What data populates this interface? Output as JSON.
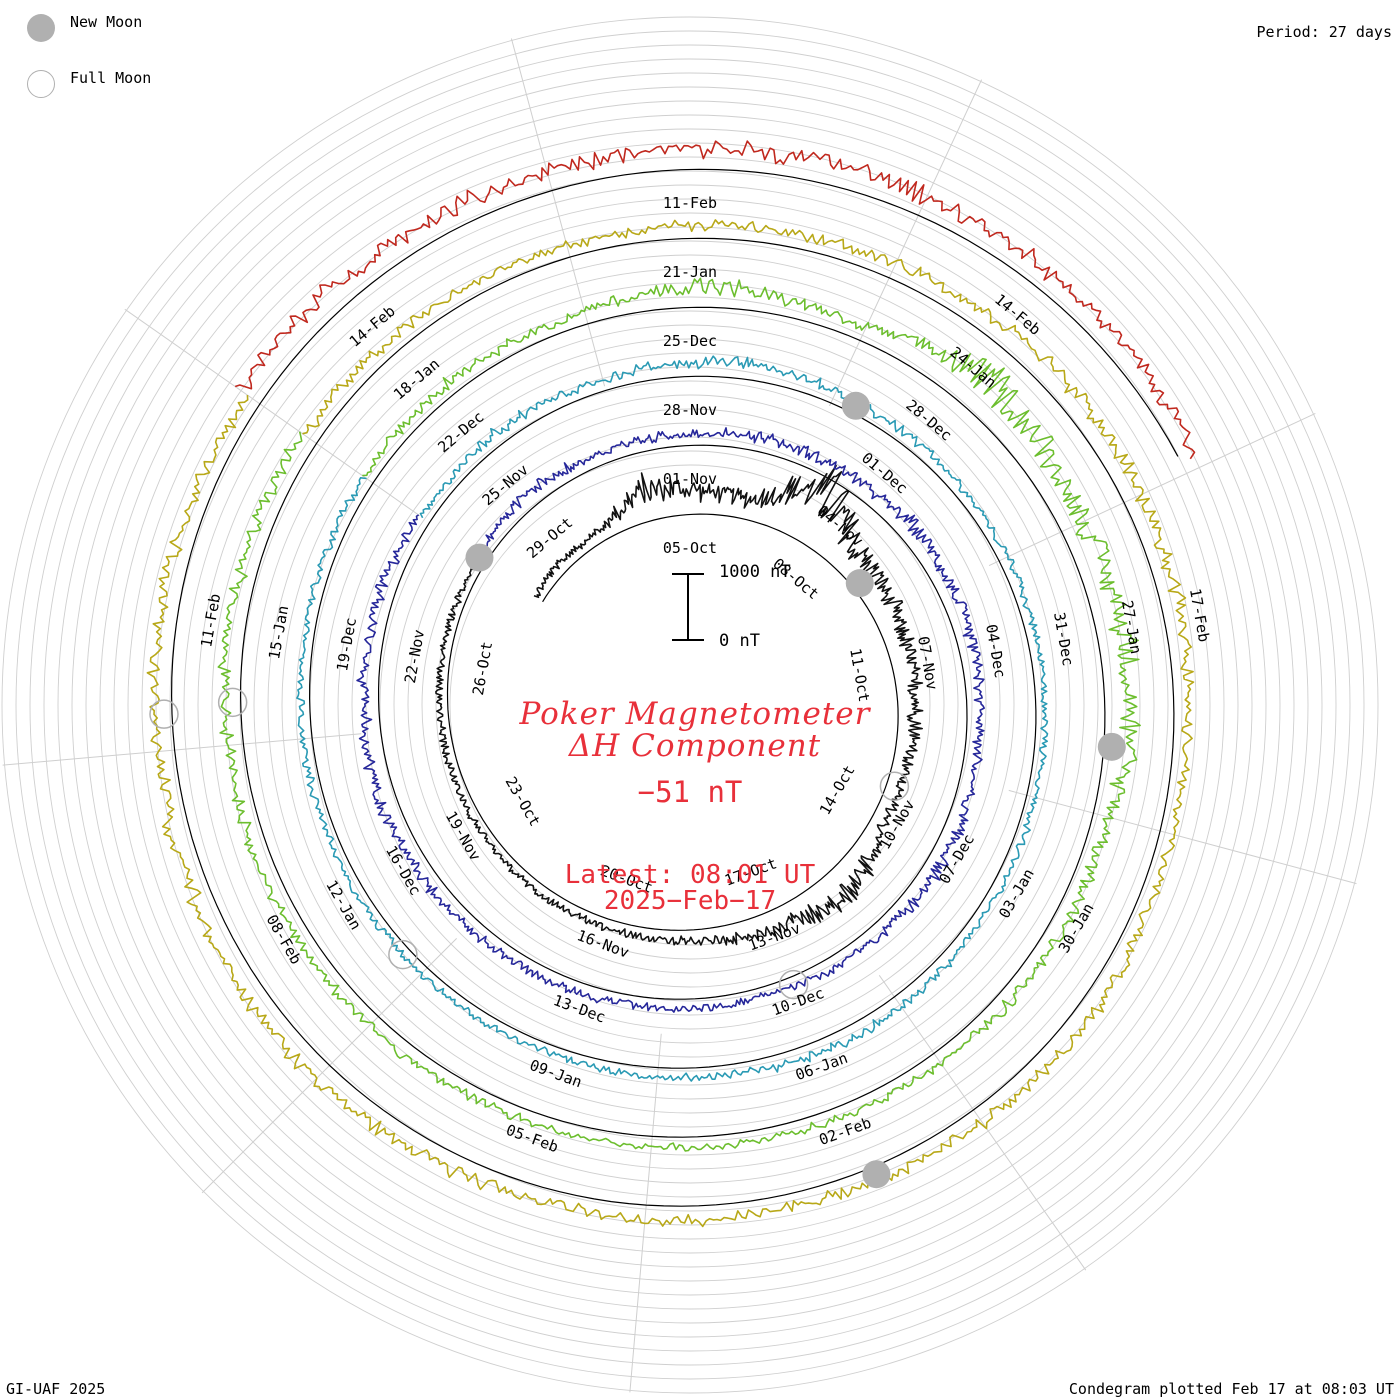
{
  "legend": {
    "new_moon": "New Moon",
    "full_moon": "Full Moon",
    "moon_color": "#b0b0b0"
  },
  "period_label": "Period: 27 days",
  "title": {
    "line1": "Poker Magnetometer",
    "line2": "ΔH Component",
    "color": "#e8303a"
  },
  "current_value": "−51 nT",
  "latest": {
    "time": "Latest: 08:01 UT",
    "date": "2025−Feb−17"
  },
  "scale_bar": {
    "top_label": "1000 nT",
    "bottom_label": "0 nT"
  },
  "footer": {
    "left": "GI-UAF 2025",
    "right": "Condegram plotted Feb 17 at 08:03 UT"
  },
  "chart_data": {
    "type": "line",
    "subtype": "spiral condegram (polar, clockwise, one revolution per 27 days)",
    "period_days": 27,
    "units": "nT",
    "baseline_nT": 0,
    "scale_reference_nT": 1000,
    "series": [
      {
        "color": "#111111",
        "rotation_labels": [
          "05-Oct",
          "08-Oct",
          "11-Oct",
          "14-Oct",
          "17-Oct",
          "20-Oct",
          "23-Oct",
          "26-Oct",
          "29-Oct"
        ],
        "activity": [
          [
            0,
            50
          ],
          [
            0.03,
            80
          ],
          [
            0.08,
            120
          ],
          [
            0.12,
            600
          ],
          [
            0.16,
            400
          ],
          [
            0.2,
            300
          ],
          [
            0.24,
            1200
          ],
          [
            0.28,
            500
          ],
          [
            0.32,
            400
          ],
          [
            0.36,
            300
          ],
          [
            0.42,
            250
          ],
          [
            0.46,
            150
          ],
          [
            0.5,
            200
          ],
          [
            0.54,
            550
          ],
          [
            0.6,
            250
          ],
          [
            0.66,
            80
          ],
          [
            0.72,
            50
          ],
          [
            0.8,
            30
          ],
          [
            0.9,
            40
          ],
          [
            1.0,
            30
          ]
        ]
      },
      {
        "color": "#26279a",
        "rotation_labels": [
          "01-Nov",
          "04-Nov",
          "07-Nov",
          "10-Nov",
          "13-Nov",
          "16-Nov",
          "19-Nov",
          "22-Nov",
          "25-Nov"
        ],
        "activity": [
          [
            0,
            50
          ],
          [
            0.04,
            200
          ],
          [
            0.1,
            100
          ],
          [
            0.15,
            120
          ],
          [
            0.2,
            200
          ],
          [
            0.26,
            150
          ],
          [
            0.3,
            250
          ],
          [
            0.36,
            180
          ],
          [
            0.42,
            150
          ],
          [
            0.5,
            180
          ],
          [
            0.56,
            100
          ],
          [
            0.62,
            60
          ],
          [
            0.7,
            80
          ],
          [
            0.8,
            150
          ],
          [
            0.86,
            250
          ],
          [
            0.9,
            180
          ],
          [
            0.95,
            200
          ],
          [
            1.0,
            120
          ]
        ]
      },
      {
        "color": "#2a9ab4",
        "rotation_labels": [
          "28-Nov",
          "01-Dec",
          "04-Dec",
          "07-Dec",
          "10-Dec",
          "13-Dec",
          "16-Dec",
          "19-Dec",
          "22-Dec"
        ],
        "activity": [
          [
            0,
            60
          ],
          [
            0.05,
            150
          ],
          [
            0.1,
            100
          ],
          [
            0.18,
            200
          ],
          [
            0.24,
            120
          ],
          [
            0.3,
            60
          ],
          [
            0.4,
            50
          ],
          [
            0.5,
            60
          ],
          [
            0.6,
            150
          ],
          [
            0.66,
            60
          ],
          [
            0.72,
            40
          ],
          [
            0.8,
            40
          ],
          [
            0.9,
            60
          ],
          [
            1.0,
            80
          ]
        ]
      },
      {
        "color": "#6cbe2e",
        "rotation_labels": [
          "25-Dec",
          "28-Dec",
          "31-Dec",
          "03-Jan",
          "06-Jan",
          "09-Jan",
          "12-Jan",
          "15-Jan",
          "18-Jan"
        ],
        "activity": [
          [
            0,
            80
          ],
          [
            0.05,
            150
          ],
          [
            0.1,
            100
          ],
          [
            0.16,
            350
          ],
          [
            0.22,
            150
          ],
          [
            0.27,
            700
          ],
          [
            0.33,
            400
          ],
          [
            0.4,
            500
          ],
          [
            0.46,
            200
          ],
          [
            0.52,
            150
          ],
          [
            0.6,
            100
          ],
          [
            0.7,
            80
          ],
          [
            0.8,
            150
          ],
          [
            0.9,
            200
          ],
          [
            1.0,
            250
          ]
        ]
      },
      {
        "color": "#b8a818",
        "rotation_labels": [
          "21-Jan",
          "24-Jan",
          "27-Jan",
          "30-Jan",
          "02-Feb",
          "05-Feb",
          "08-Feb",
          "11-Feb",
          "14-Feb"
        ],
        "activity": [
          [
            0,
            200
          ],
          [
            0.05,
            150
          ],
          [
            0.12,
            120
          ],
          [
            0.2,
            200
          ],
          [
            0.3,
            300
          ],
          [
            0.38,
            250
          ],
          [
            0.45,
            150
          ],
          [
            0.52,
            250
          ],
          [
            0.6,
            150
          ],
          [
            0.7,
            200
          ],
          [
            0.8,
            300
          ],
          [
            0.9,
            250
          ],
          [
            1.0,
            200
          ]
        ]
      },
      {
        "color": "#c0281e",
        "rotation_labels": [
          "11-Feb",
          "14-Feb",
          "17-Feb"
        ],
        "activity": [
          [
            0,
            400
          ],
          [
            0.1,
            300
          ],
          [
            0.2,
            350
          ],
          [
            0.3,
            250
          ],
          [
            0.4,
            300
          ],
          [
            0.5,
            250
          ],
          [
            0.6,
            200
          ],
          [
            0.7,
            200
          ],
          [
            0.8,
            300
          ],
          [
            0.9,
            200
          ],
          [
            1.0,
            150
          ]
        ]
      }
    ],
    "new_moon_days": [
      8.2,
      0.0,
      6.3,
      11.3,
      16.0
    ],
    "full_moon_days": [
      12.5,
      16.1,
      21.3,
      24.4,
      24.3
    ],
    "grid": true,
    "legend_position": "top-left"
  }
}
